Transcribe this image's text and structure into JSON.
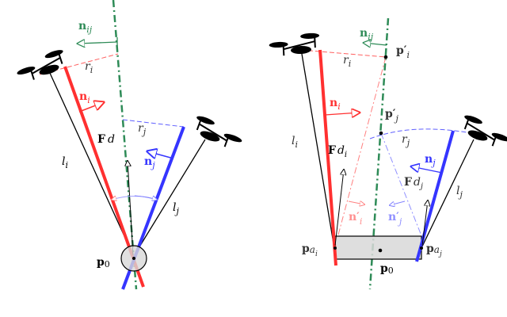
{
  "colors": {
    "green": "#2e8b57",
    "red": "#ff3030",
    "blue": "#3535ff",
    "black": "#000000",
    "box": "#d8d8d8"
  },
  "left": {
    "n_ij": "n",
    "n_ij_sub": "ij",
    "r_i": "r",
    "r_i_sub": "i",
    "n_i": "n",
    "n_i_sub": "i",
    "r_j": "r",
    "r_j_sub": "j",
    "F_d": "F",
    "F_d_sub": "d",
    "n_j": "n",
    "n_j_sub": "j",
    "l_i": "l",
    "l_i_sub": "i",
    "l_j": "l",
    "l_j_sub": "j",
    "p0": "p",
    "p0_sub": "0"
  },
  "right": {
    "n_ij": "n",
    "n_ij_sub": "ij",
    "p_i": "p′",
    "p_i_sub": "i",
    "r_i": "r",
    "r_i_sub": "i",
    "n_i": "n",
    "n_i_sub": "i",
    "p_j": "p′",
    "p_j_sub": "j",
    "r_j": "r",
    "r_j_sub": "j",
    "l_i": "l",
    "l_i_sub": "i",
    "F_di": "F",
    "F_di_sub": "d",
    "F_di_subsub": "i",
    "n_j": "n",
    "n_j_sub": "j",
    "F_dj": "F",
    "F_dj_sub": "d",
    "F_dj_subsub": "j",
    "l_j": "l",
    "l_j_sub": "j",
    "n_pi": "n′",
    "n_pi_sub": "i",
    "n_pj": "n′",
    "n_pj_sub": "j",
    "pa_i": "p",
    "pa_i_sub": "a",
    "pa_i_subsub": "i",
    "pa_j": "p",
    "pa_j_sub": "a",
    "pa_j_subsub": "j",
    "p0": "p",
    "p0_sub": "0"
  }
}
